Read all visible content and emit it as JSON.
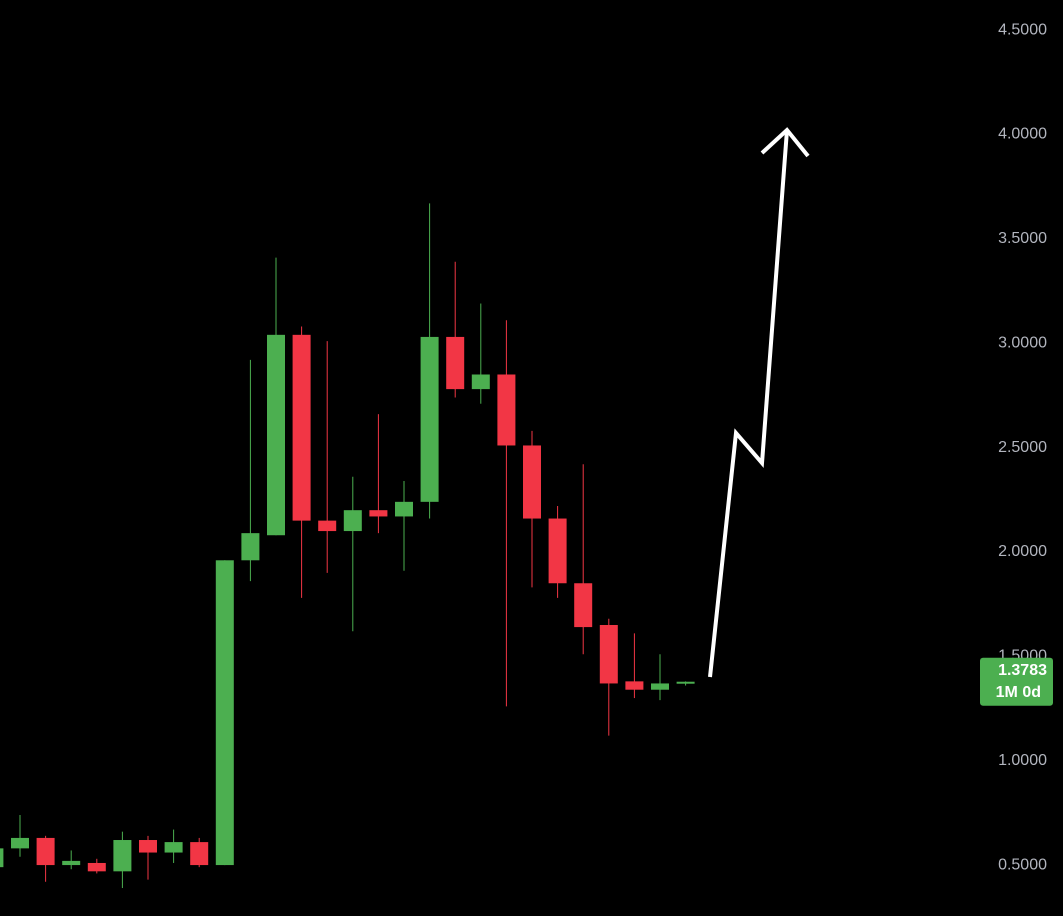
{
  "chart_data": {
    "type": "candlestick",
    "open": [
      0.49,
      0.58,
      0.63,
      0.5,
      0.51,
      0.47,
      0.62,
      0.56,
      0.61,
      0.5,
      1.96,
      2.08,
      3.04,
      2.15,
      2.1,
      2.2,
      2.17,
      2.24,
      3.03,
      2.78,
      2.85,
      2.51,
      2.16,
      1.85,
      1.65,
      1.38,
      1.34,
      1.37
    ],
    "high": [
      0.6,
      0.74,
      0.64,
      0.57,
      0.53,
      0.66,
      0.64,
      0.67,
      0.63,
      1.96,
      2.92,
      3.41,
      3.08,
      3.01,
      2.36,
      2.66,
      2.34,
      3.67,
      3.39,
      3.19,
      3.11,
      2.58,
      2.22,
      2.42,
      1.68,
      1.61,
      1.51,
      1.38
    ],
    "low": [
      0.47,
      0.54,
      0.42,
      0.48,
      0.46,
      0.39,
      0.43,
      0.51,
      0.49,
      0.5,
      1.86,
      2.08,
      1.78,
      1.9,
      1.62,
      2.09,
      1.91,
      2.16,
      2.74,
      2.71,
      1.26,
      1.83,
      1.78,
      1.51,
      1.12,
      1.3,
      1.29,
      1.36
    ],
    "close": [
      0.58,
      0.63,
      0.5,
      0.52,
      0.47,
      0.62,
      0.56,
      0.61,
      0.5,
      1.96,
      2.09,
      3.04,
      2.15,
      2.1,
      2.2,
      2.17,
      2.24,
      3.03,
      2.78,
      2.85,
      2.51,
      2.16,
      1.85,
      1.64,
      1.37,
      1.34,
      1.37,
      1.3783
    ],
    "up_color": "#4caf50",
    "down_color": "#f23645",
    "countdown": "1M 0d",
    "ylim": [
      0.256,
      4.644
    ],
    "yticks": [
      {
        "value": 0.5,
        "label": "0.5000"
      },
      {
        "value": 1.0,
        "label": "1.0000"
      },
      {
        "value": 1.5,
        "label": "1.5000"
      },
      {
        "value": 2.0,
        "label": "2.0000"
      },
      {
        "value": 2.5,
        "label": "2.5000"
      },
      {
        "value": 3.0,
        "label": "3.0000"
      },
      {
        "value": 3.5,
        "label": "3.5000"
      },
      {
        "value": 4.0,
        "label": "4.0000"
      },
      {
        "value": 4.5,
        "label": "4.5000"
      }
    ]
  }
}
